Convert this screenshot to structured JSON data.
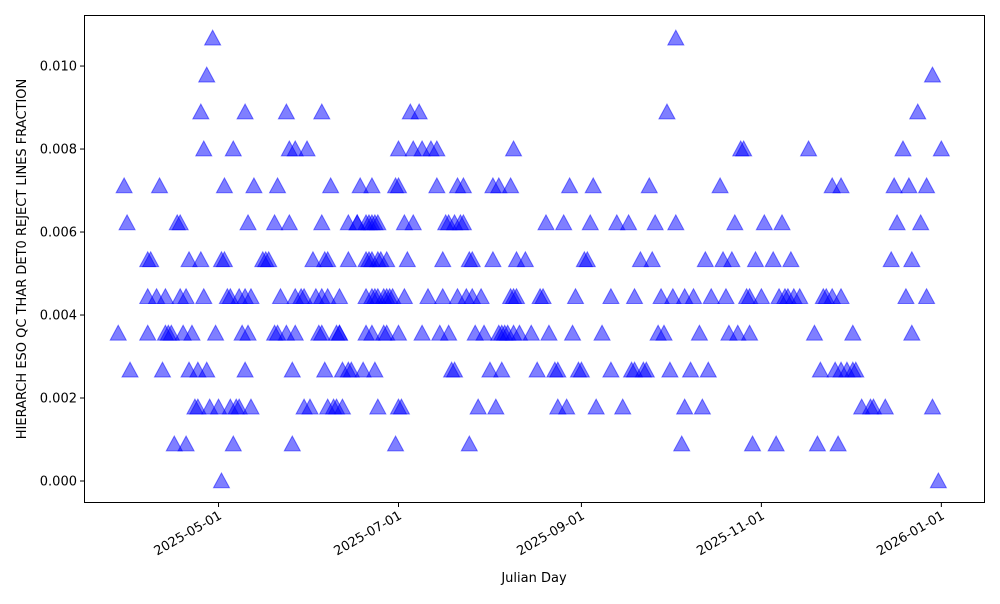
{
  "chart_data": {
    "type": "scatter",
    "xlabel": "Julian Day",
    "ylabel": "HIERARCH ESO QC THAR DET0 REJECT LINES FRACTION",
    "xlim": [
      "2025-03-16",
      "2026-01-15"
    ],
    "ylim": [
      -0.00053,
      0.01123
    ],
    "grid": false,
    "marker": "triangle-up",
    "color": "#0000ff",
    "alpha": 0.5,
    "x_ticks": [
      "2025-05-01",
      "2025-07-01",
      "2025-09-01",
      "2025-11-01",
      "2026-01-01"
    ],
    "y_ticks": [
      "0.000",
      "0.002",
      "0.004",
      "0.006",
      "0.008",
      "0.010"
    ],
    "points_by_value": [
      {
        "y": 0.01067,
        "x": [
          "2025-04-29",
          "2025-10-03"
        ]
      },
      {
        "y": 0.00978,
        "x": [
          "2025-04-27",
          "2025-12-29"
        ]
      },
      {
        "y": 0.00889,
        "x": [
          "2025-04-25",
          "2025-05-10",
          "2025-05-24",
          "2025-06-05",
          "2025-07-05",
          "2025-07-08",
          "2025-09-30",
          "2025-12-24"
        ]
      },
      {
        "y": 0.008,
        "x": [
          "2025-04-26",
          "2025-05-06",
          "2025-05-25",
          "2025-05-27",
          "2025-05-31",
          "2025-07-01",
          "2025-07-06",
          "2025-07-09",
          "2025-07-12",
          "2025-07-14",
          "2025-08-09",
          "2025-10-25",
          "2025-10-26",
          "2025-11-17",
          "2025-12-19",
          "2026-01-01"
        ]
      },
      {
        "y": 0.00711,
        "x": [
          "2025-03-30",
          "2025-04-11",
          "2025-05-03",
          "2025-05-13",
          "2025-05-21",
          "2025-06-08",
          "2025-06-18",
          "2025-06-22",
          "2025-06-30",
          "2025-07-01",
          "2025-07-14",
          "2025-07-21",
          "2025-07-23",
          "2025-08-02",
          "2025-08-04",
          "2025-08-08",
          "2025-08-28",
          "2025-09-05",
          "2025-09-24",
          "2025-10-18",
          "2025-11-25",
          "2025-11-28",
          "2025-12-16",
          "2025-12-21",
          "2025-12-27"
        ]
      },
      {
        "y": 0.00622,
        "x": [
          "2025-03-31",
          "2025-04-17",
          "2025-04-18",
          "2025-05-11",
          "2025-05-20",
          "2025-05-25",
          "2025-06-05",
          "2025-06-14",
          "2025-06-17",
          "2025-06-17",
          "2025-06-20",
          "2025-06-21",
          "2025-06-22",
          "2025-06-23",
          "2025-06-24",
          "2025-07-03",
          "2025-07-06",
          "2025-07-17",
          "2025-07-18",
          "2025-07-20",
          "2025-07-22",
          "2025-07-23",
          "2025-08-20",
          "2025-08-26",
          "2025-09-04",
          "2025-09-13",
          "2025-09-17",
          "2025-09-26",
          "2025-10-03",
          "2025-10-23",
          "2025-11-02",
          "2025-11-08",
          "2025-12-17",
          "2025-12-25"
        ]
      },
      {
        "y": 0.00533,
        "x": [
          "2025-04-07",
          "2025-04-08",
          "2025-04-21",
          "2025-04-25",
          "2025-05-02",
          "2025-05-03",
          "2025-05-16",
          "2025-05-17",
          "2025-05-18",
          "2025-06-02",
          "2025-06-06",
          "2025-06-07",
          "2025-06-14",
          "2025-06-20",
          "2025-06-21",
          "2025-06-22",
          "2025-06-24",
          "2025-06-25",
          "2025-06-27",
          "2025-07-04",
          "2025-07-16",
          "2025-07-25",
          "2025-07-26",
          "2025-08-02",
          "2025-08-10",
          "2025-08-13",
          "2025-09-02",
          "2025-09-03",
          "2025-09-21",
          "2025-09-25",
          "2025-10-13",
          "2025-10-19",
          "2025-10-22",
          "2025-10-30",
          "2025-11-05",
          "2025-11-11",
          "2025-12-15",
          "2025-12-22"
        ]
      },
      {
        "y": 0.00444,
        "x": [
          "2025-04-07",
          "2025-04-10",
          "2025-04-13",
          "2025-04-18",
          "2025-04-20",
          "2025-04-26",
          "2025-05-04",
          "2025-05-05",
          "2025-05-08",
          "2025-05-10",
          "2025-05-12",
          "2025-05-22",
          "2025-05-27",
          "2025-05-29",
          "2025-05-30",
          "2025-06-03",
          "2025-06-05",
          "2025-06-07",
          "2025-06-11",
          "2025-06-20",
          "2025-06-22",
          "2025-06-23",
          "2025-06-24",
          "2025-06-26",
          "2025-06-27",
          "2025-06-28",
          "2025-06-29",
          "2025-07-03",
          "2025-07-11",
          "2025-07-16",
          "2025-07-21",
          "2025-07-24",
          "2025-07-26",
          "2025-07-29",
          "2025-08-08",
          "2025-08-09",
          "2025-08-10",
          "2025-08-18",
          "2025-08-19",
          "2025-08-30",
          "2025-09-11",
          "2025-09-19",
          "2025-09-28",
          "2025-10-02",
          "2025-10-06",
          "2025-10-09",
          "2025-10-15",
          "2025-10-20",
          "2025-10-27",
          "2025-10-28",
          "2025-11-01",
          "2025-11-07",
          "2025-11-09",
          "2025-11-10",
          "2025-11-12",
          "2025-11-14",
          "2025-11-22",
          "2025-11-23",
          "2025-11-25",
          "2025-11-28",
          "2025-12-20",
          "2025-12-27"
        ]
      },
      {
        "y": 0.00356,
        "x": [
          "2025-03-28",
          "2025-04-07",
          "2025-04-13",
          "2025-04-14",
          "2025-04-15",
          "2025-04-19",
          "2025-04-22",
          "2025-04-30",
          "2025-05-09",
          "2025-05-11",
          "2025-05-20",
          "2025-05-21",
          "2025-05-24",
          "2025-05-27",
          "2025-06-04",
          "2025-06-05",
          "2025-06-10",
          "2025-06-11",
          "2025-06-11",
          "2025-06-20",
          "2025-06-22",
          "2025-06-26",
          "2025-06-27",
          "2025-07-01",
          "2025-07-09",
          "2025-07-15",
          "2025-07-18",
          "2025-07-27",
          "2025-07-30",
          "2025-08-04",
          "2025-08-05",
          "2025-08-06",
          "2025-08-07",
          "2025-08-09",
          "2025-08-11",
          "2025-08-15",
          "2025-08-21",
          "2025-08-29",
          "2025-09-08",
          "2025-09-27",
          "2025-09-29",
          "2025-10-11",
          "2025-10-21",
          "2025-10-24",
          "2025-10-28",
          "2025-11-19",
          "2025-12-02",
          "2025-12-22"
        ]
      },
      {
        "y": 0.00267,
        "x": [
          "2025-04-01",
          "2025-04-12",
          "2025-04-21",
          "2025-04-24",
          "2025-04-27",
          "2025-05-10",
          "2025-05-26",
          "2025-06-06",
          "2025-06-12",
          "2025-06-14",
          "2025-06-15",
          "2025-06-19",
          "2025-06-23",
          "2025-07-19",
          "2025-07-20",
          "2025-08-01",
          "2025-08-05",
          "2025-08-17",
          "2025-08-23",
          "2025-08-24",
          "2025-08-31",
          "2025-09-01",
          "2025-09-11",
          "2025-09-18",
          "2025-09-19",
          "2025-09-22",
          "2025-09-23",
          "2025-10-01",
          "2025-10-08",
          "2025-10-14",
          "2025-11-21",
          "2025-11-26",
          "2025-11-28",
          "2025-11-30",
          "2025-12-02",
          "2025-12-03"
        ]
      },
      {
        "y": 0.00178,
        "x": [
          "2025-04-23",
          "2025-04-24",
          "2025-04-28",
          "2025-05-01",
          "2025-05-05",
          "2025-05-07",
          "2025-05-08",
          "2025-05-12",
          "2025-05-30",
          "2025-06-01",
          "2025-06-07",
          "2025-06-09",
          "2025-06-10",
          "2025-06-12",
          "2025-06-24",
          "2025-07-01",
          "2025-07-02",
          "2025-07-28",
          "2025-08-03",
          "2025-08-24",
          "2025-08-27",
          "2025-09-06",
          "2025-09-15",
          "2025-10-06",
          "2025-10-12",
          "2025-12-05",
          "2025-12-08",
          "2025-12-09",
          "2025-12-13",
          "2025-12-29"
        ]
      },
      {
        "y": 0.00089,
        "x": [
          "2025-04-16",
          "2025-04-20",
          "2025-05-06",
          "2025-05-26",
          "2025-06-30",
          "2025-07-25",
          "2025-10-05",
          "2025-10-29",
          "2025-11-06",
          "2025-11-20",
          "2025-11-27"
        ]
      },
      {
        "y": 0.0,
        "x": [
          "2025-05-02",
          "2025-12-31"
        ]
      }
    ]
  }
}
